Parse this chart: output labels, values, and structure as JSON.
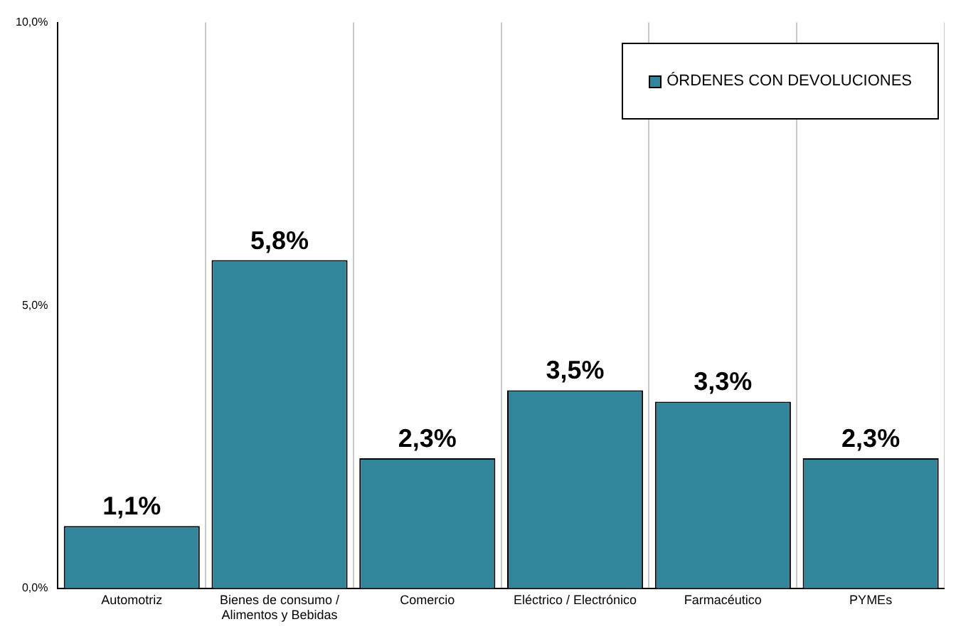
{
  "chart_data": {
    "type": "bar",
    "categories": [
      "Automotriz",
      "Bienes de consumo / Alimentos y Bebidas",
      "Comercio",
      "Eléctrico / Electrónico",
      "Farmacéutico",
      "PYMEs"
    ],
    "series": [
      {
        "name": "ÓRDENES CON DEVOLUCIONES",
        "color": "#31869b",
        "values": [
          1.1,
          5.8,
          2.3,
          3.5,
          3.3,
          2.3
        ],
        "value_labels": [
          "1,1%",
          "5,8%",
          "2,3%",
          "3,5%",
          "3,3%",
          "2,3%"
        ]
      }
    ],
    "ylim": [
      0,
      10
    ],
    "yticks": [
      {
        "value": 0,
        "label": "0,0%"
      },
      {
        "value": 5,
        "label": "5,0%"
      },
      {
        "value": 10,
        "label": "10,0%"
      }
    ],
    "grid": "x",
    "legend": "top right"
  }
}
